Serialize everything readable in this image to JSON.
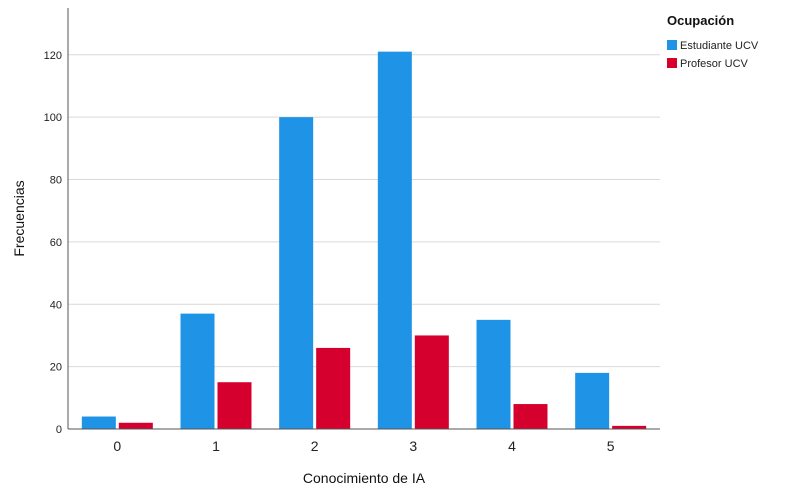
{
  "chart_data": {
    "type": "bar",
    "title": "",
    "xlabel": "Conocimiento de IA",
    "ylabel": "Frecuencias",
    "categories": [
      "0",
      "1",
      "2",
      "3",
      "4",
      "5"
    ],
    "yticks": [
      "0",
      "20",
      "40",
      "60",
      "80",
      "100",
      "120"
    ],
    "ylim": [
      0,
      135
    ],
    "grid": true,
    "legend_title": "Ocupación",
    "legend_position": "top-right",
    "series": [
      {
        "name": "Estudiante UCV",
        "color": "#1f94e6",
        "values": [
          4,
          37,
          100,
          121,
          35,
          18
        ]
      },
      {
        "name": "Profesor UCV",
        "color": "#d6002e",
        "values": [
          2,
          15,
          26,
          30,
          8,
          1
        ]
      }
    ]
  }
}
